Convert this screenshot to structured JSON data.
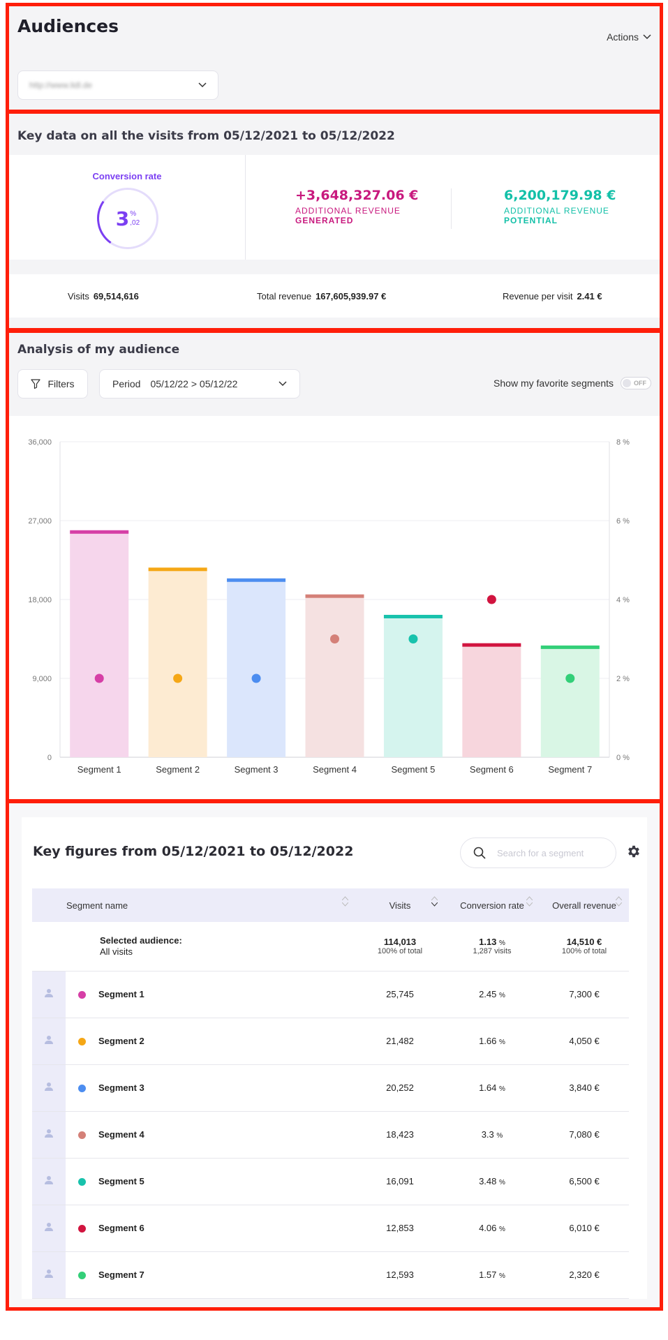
{
  "header": {
    "title": "Audiences",
    "actions_label": "Actions",
    "url_value": "http://www.lidl.de"
  },
  "key_data": {
    "title": "Key data on all the visits from 05/12/2021 to 05/12/2022",
    "conversion_label": "Conversion rate",
    "conversion_int": "3",
    "conversion_pct": "%",
    "conversion_dec": ",02",
    "generated_value": "+3,648,327.06 €",
    "generated_l1": "ADDITIONAL REVENUE",
    "generated_l2": "GENERATED",
    "potential_value": "6,200,179.98 €",
    "potential_l1": "ADDITIONAL REVENUE",
    "potential_l2": "POTENTIAL",
    "visits_label": "Visits",
    "visits_value": "69,514,616",
    "total_revenue_label": "Total revenue",
    "total_revenue_value": "167,605,939.97 €",
    "rpv_label": "Revenue per visit",
    "rpv_value": "2.41 €",
    "colors": {
      "purple": "#7b3ff2",
      "magenta": "#c8197e",
      "teal": "#13c0a8"
    }
  },
  "analysis": {
    "title": "Analysis of my audience",
    "filters_label": "Filters",
    "period_label": "Period",
    "period_value": "05/12/22 > 05/12/22",
    "favorite_label": "Show my favorite segments",
    "toggle_label": "OFF"
  },
  "chart_data": {
    "type": "bar",
    "categories": [
      "Segment 1",
      "Segment 2",
      "Segment 3",
      "Segment 4",
      "Segment 5",
      "Segment 6",
      "Segment 7"
    ],
    "series": [
      {
        "values": [
          25745,
          21482,
          20252,
          18423,
          16091,
          12853,
          12593
        ],
        "axis": "left"
      },
      {
        "values": [
          2,
          2,
          2,
          3,
          3,
          4,
          2
        ],
        "axis": "right"
      }
    ],
    "colors": [
      "#d63fa6",
      "#f5a716",
      "#4c8df0",
      "#d48078",
      "#18c2ac",
      "#d1143f",
      "#33cf78"
    ],
    "fill_colors": [
      "#f6d6ec",
      "#fdebd2",
      "#dbe6fc",
      "#f5e1e1",
      "#d5f4ee",
      "#f7d6dd",
      "#d9f6e5"
    ],
    "ylim": [
      0,
      36000
    ],
    "y2lim": [
      0,
      8
    ],
    "yticks": [
      "0",
      "9,000",
      "18,000",
      "27,000",
      "36,000"
    ],
    "y2ticks": [
      "0 %",
      "2 %",
      "4 %",
      "6 %",
      "8 %"
    ],
    "grid": true
  },
  "figures": {
    "title": "Key figures from 05/12/2021 to 05/12/2022",
    "search_placeholder": "Search for a segment",
    "columns": [
      "Segment name",
      "Visits",
      "Conversion rate",
      "Overall revenue"
    ],
    "selected": {
      "label": "Selected audience:",
      "name": "All visits",
      "visits": "114,013",
      "visits_sub": "100% of total",
      "conv": "1.13",
      "conv_pct": "%",
      "conv_sub": "1,287 visits",
      "revenue": "14,510 €",
      "revenue_sub": "100% of total"
    },
    "rows": [
      {
        "name": "Segment 1",
        "visits": "25,745",
        "conv": "2.45",
        "pct": "%",
        "revenue": "7,300 €"
      },
      {
        "name": "Segment 2",
        "visits": "21,482",
        "conv": "1.66",
        "pct": "%",
        "revenue": "4,050 €"
      },
      {
        "name": "Segment 3",
        "visits": "20,252",
        "conv": "1.64",
        "pct": "%",
        "revenue": "3,840 €"
      },
      {
        "name": "Segment 4",
        "visits": "18,423",
        "conv": "3.3",
        "pct": "%",
        "revenue": "7,080 €"
      },
      {
        "name": "Segment 5",
        "visits": "16,091",
        "conv": "3.48",
        "pct": "%",
        "revenue": "6,500 €"
      },
      {
        "name": "Segment 6",
        "visits": "12,853",
        "conv": "4.06",
        "pct": "%",
        "revenue": "6,010 €"
      },
      {
        "name": "Segment 7",
        "visits": "12,593",
        "conv": "1.57",
        "pct": "%",
        "revenue": "2,320 €"
      }
    ]
  }
}
